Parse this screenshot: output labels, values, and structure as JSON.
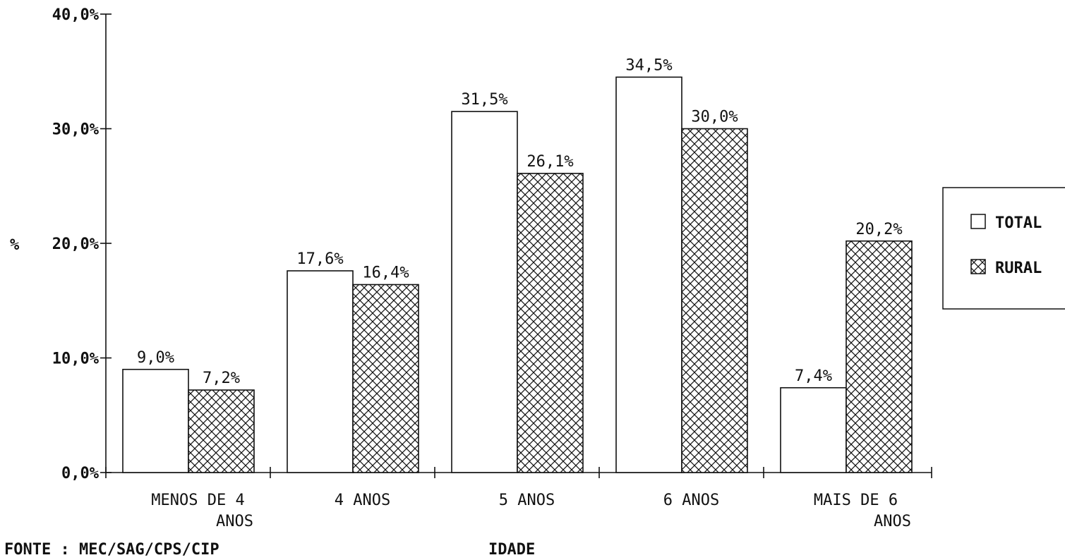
{
  "chart_data": {
    "type": "bar",
    "categories": [
      [
        "MENOS DE 4",
        "ANOS"
      ],
      [
        "4 ANOS"
      ],
      [
        "5 ANOS"
      ],
      [
        "6 ANOS"
      ],
      [
        "MAIS DE 6",
        "ANOS"
      ]
    ],
    "series": [
      {
        "name": "TOTAL",
        "values": [
          9.0,
          17.6,
          31.5,
          34.5,
          7.4
        ],
        "labels": [
          "9,0%",
          "17,6%",
          "31,5%",
          "34,5%",
          "7,4%"
        ],
        "fill": "none"
      },
      {
        "name": "RURAL",
        "values": [
          7.2,
          16.4,
          26.1,
          30.0,
          20.2
        ],
        "labels": [
          "7,2%",
          "16,4%",
          "26,1%",
          "30,0%",
          "20,2%"
        ],
        "fill": "crosshatch"
      }
    ],
    "yticks": [
      {
        "value": 0,
        "label": "0,0%"
      },
      {
        "value": 10,
        "label": "10,0%"
      },
      {
        "value": 20,
        "label": "20,0%"
      },
      {
        "value": 30,
        "label": "30,0%"
      },
      {
        "value": 40,
        "label": "40,0%"
      }
    ],
    "ylim": [
      0,
      40
    ],
    "ylabel": "%",
    "xlabel": "IDADE",
    "source": "FONTE : MEC/SAG/CPS/CIP",
    "legend_position": "right",
    "grid": false,
    "colors": {
      "ink": "#111111",
      "background": "#ffffff"
    }
  }
}
